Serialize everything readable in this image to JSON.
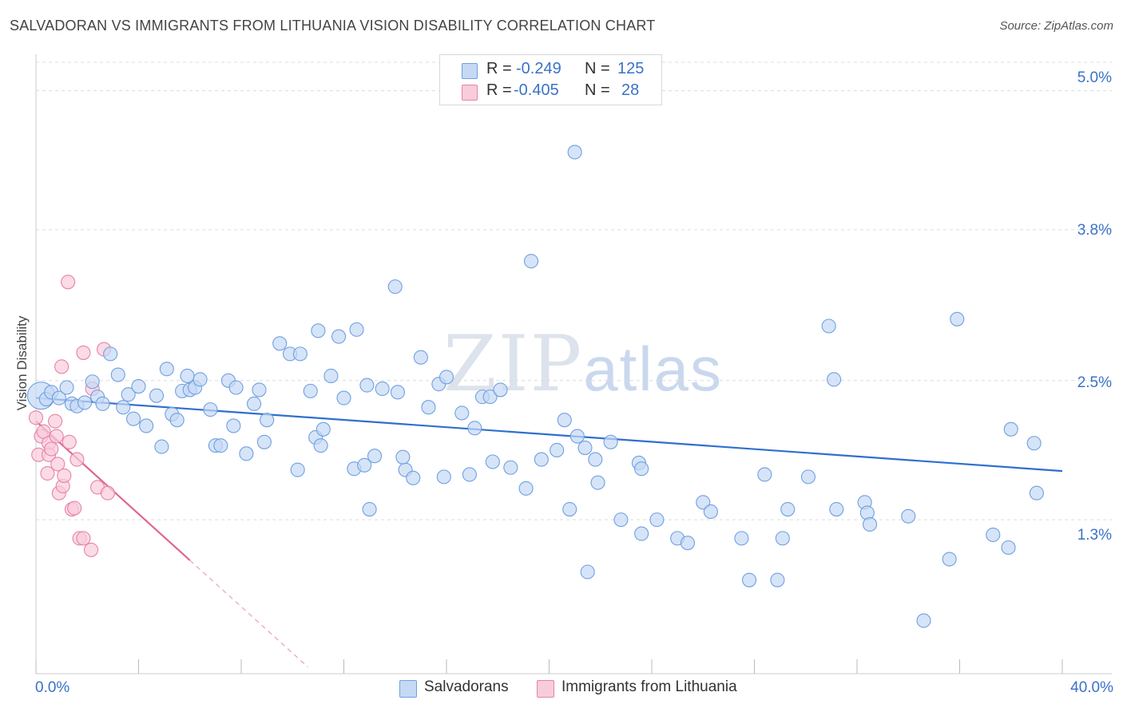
{
  "title": "SALVADORAN VS IMMIGRANTS FROM LITHUANIA VISION DISABILITY CORRELATION CHART",
  "source": "Source: ZipAtlas.com",
  "watermark": {
    "zip": "ZIP",
    "atlas": "atlas"
  },
  "legend": {
    "rows": [
      {
        "r_label": "R =",
        "r_value": "-0.249",
        "n_label": "N =",
        "n_value": "125",
        "color": "#a9c8f0"
      },
      {
        "r_label": "R =",
        "r_value": "-0.405",
        "n_label": "N =",
        "n_value": "28",
        "color": "#f6b8cc"
      }
    ]
  },
  "chart_data": {
    "type": "scatter",
    "title": "SALVADORAN VS IMMIGRANTS FROM LITHUANIA VISION DISABILITY CORRELATION CHART",
    "xlabel": "",
    "ylabel": "Vision Disability",
    "xlim": [
      0,
      40
    ],
    "ylim": [
      0,
      5.3
    ],
    "x_tick_labels": [
      "0.0%",
      "40.0%"
    ],
    "y_ticks": [
      1.3,
      2.5,
      3.8,
      5.0
    ],
    "y_tick_labels": [
      "1.3%",
      "2.5%",
      "3.8%",
      "5.0%"
    ],
    "grid": true,
    "series": [
      {
        "name": "Salvadorans",
        "color": "#6fa0e0",
        "fill": "#c5d9f5",
        "trend": {
          "x": [
            0,
            40
          ],
          "y": [
            2.35,
            1.72
          ]
        },
        "points": [
          [
            0.2,
            2.37
          ],
          [
            0.4,
            2.34
          ],
          [
            0.6,
            2.4
          ],
          [
            0.9,
            2.35
          ],
          [
            1.2,
            2.44
          ],
          [
            1.4,
            2.3
          ],
          [
            1.6,
            2.28
          ],
          [
            1.9,
            2.31
          ],
          [
            2.2,
            2.49
          ],
          [
            2.4,
            2.36
          ],
          [
            2.6,
            2.3
          ],
          [
            2.9,
            2.73
          ],
          [
            3.2,
            2.55
          ],
          [
            3.4,
            2.27
          ],
          [
            3.6,
            2.38
          ],
          [
            3.8,
            2.17
          ],
          [
            4.0,
            2.45
          ],
          [
            4.3,
            2.11
          ],
          [
            4.7,
            2.37
          ],
          [
            4.9,
            1.93
          ],
          [
            5.1,
            2.6
          ],
          [
            5.3,
            2.21
          ],
          [
            5.5,
            2.16
          ],
          [
            5.7,
            2.41
          ],
          [
            5.9,
            2.54
          ],
          [
            6.0,
            2.42
          ],
          [
            6.2,
            2.44
          ],
          [
            6.4,
            2.51
          ],
          [
            6.8,
            2.25
          ],
          [
            7.0,
            1.94
          ],
          [
            7.2,
            1.94
          ],
          [
            7.5,
            2.5
          ],
          [
            7.7,
            2.11
          ],
          [
            7.8,
            2.44
          ],
          [
            8.2,
            1.87
          ],
          [
            8.5,
            2.3
          ],
          [
            8.7,
            2.42
          ],
          [
            8.9,
            1.97
          ],
          [
            9.0,
            2.16
          ],
          [
            9.5,
            2.82
          ],
          [
            9.9,
            2.73
          ],
          [
            10.3,
            2.73
          ],
          [
            10.7,
            2.41
          ],
          [
            10.2,
            1.73
          ],
          [
            11.0,
            2.93
          ],
          [
            10.9,
            2.01
          ],
          [
            11.2,
            2.08
          ],
          [
            11.1,
            1.94
          ],
          [
            11.5,
            2.54
          ],
          [
            11.8,
            2.88
          ],
          [
            12.0,
            2.35
          ],
          [
            12.4,
            1.74
          ],
          [
            12.5,
            2.94
          ],
          [
            12.9,
            2.46
          ],
          [
            13.0,
            1.39
          ],
          [
            13.2,
            1.85
          ],
          [
            13.5,
            2.43
          ],
          [
            12.8,
            1.77
          ],
          [
            14.1,
            2.4
          ],
          [
            14.4,
            1.73
          ],
          [
            14.0,
            3.31
          ],
          [
            14.3,
            1.84
          ],
          [
            14.7,
            1.66
          ],
          [
            15.0,
            2.7
          ],
          [
            15.3,
            2.27
          ],
          [
            15.7,
            2.47
          ],
          [
            15.9,
            1.67
          ],
          [
            16.0,
            2.53
          ],
          [
            16.6,
            2.22
          ],
          [
            16.9,
            1.69
          ],
          [
            17.1,
            2.09
          ],
          [
            17.4,
            2.36
          ],
          [
            17.7,
            2.36
          ],
          [
            17.8,
            1.8
          ],
          [
            18.1,
            2.42
          ],
          [
            18.5,
            1.75
          ],
          [
            19.1,
            1.57
          ],
          [
            19.3,
            3.53
          ],
          [
            19.7,
            1.82
          ],
          [
            20.3,
            1.9
          ],
          [
            20.6,
            2.16
          ],
          [
            20.8,
            1.39
          ],
          [
            21.0,
            4.47
          ],
          [
            21.4,
            1.92
          ],
          [
            21.5,
            0.85
          ],
          [
            21.1,
            2.02
          ],
          [
            21.8,
            1.82
          ],
          [
            21.9,
            1.62
          ],
          [
            22.4,
            1.97
          ],
          [
            22.8,
            1.3
          ],
          [
            23.5,
            1.79
          ],
          [
            23.6,
            1.18
          ],
          [
            23.6,
            1.74
          ],
          [
            24.2,
            1.3
          ],
          [
            25.0,
            1.14
          ],
          [
            25.4,
            1.1
          ],
          [
            26.0,
            1.45
          ],
          [
            26.3,
            1.37
          ],
          [
            27.5,
            1.14
          ],
          [
            27.8,
            0.78
          ],
          [
            28.4,
            1.69
          ],
          [
            28.9,
            0.78
          ],
          [
            29.1,
            1.14
          ],
          [
            29.3,
            1.39
          ],
          [
            30.1,
            1.67
          ],
          [
            30.9,
            2.97
          ],
          [
            31.1,
            2.51
          ],
          [
            31.2,
            1.39
          ],
          [
            32.3,
            1.45
          ],
          [
            32.4,
            1.36
          ],
          [
            32.5,
            1.26
          ],
          [
            34.0,
            1.33
          ],
          [
            34.6,
            0.43
          ],
          [
            35.9,
            3.03
          ],
          [
            35.6,
            0.96
          ],
          [
            37.3,
            1.17
          ],
          [
            37.9,
            1.06
          ],
          [
            38.0,
            2.08
          ],
          [
            38.9,
            1.96
          ],
          [
            39.0,
            1.53
          ]
        ]
      },
      {
        "name": "Immigrants from Lithuania",
        "color": "#e882a8",
        "fill": "#f8ccdb",
        "trend": {
          "x": [
            0,
            6.0
          ],
          "y": [
            2.15,
            0.95
          ]
        },
        "trend_dashed": {
          "x": [
            6.0,
            10.6
          ],
          "y": [
            0.95,
            0.03
          ]
        },
        "points": [
          [
            0,
            2.18
          ],
          [
            0.1,
            1.86
          ],
          [
            0.2,
            2.02
          ],
          [
            0.3,
            2.06
          ],
          [
            0.45,
            1.7
          ],
          [
            0.5,
            1.96
          ],
          [
            0.5,
            1.86
          ],
          [
            0.6,
            1.91
          ],
          [
            0.75,
            2.15
          ],
          [
            0.8,
            2.02
          ],
          [
            0.85,
            1.78
          ],
          [
            0.9,
            1.53
          ],
          [
            1.0,
            2.62
          ],
          [
            1.05,
            1.59
          ],
          [
            1.1,
            1.68
          ],
          [
            1.25,
            3.35
          ],
          [
            1.3,
            1.97
          ],
          [
            1.4,
            1.39
          ],
          [
            1.5,
            1.4
          ],
          [
            1.6,
            1.82
          ],
          [
            1.7,
            1.14
          ],
          [
            1.85,
            2.74
          ],
          [
            1.85,
            1.14
          ],
          [
            2.15,
            1.04
          ],
          [
            2.2,
            2.43
          ],
          [
            2.4,
            1.58
          ],
          [
            2.65,
            2.77
          ],
          [
            2.8,
            1.53
          ]
        ]
      }
    ]
  },
  "bottom_legend": {
    "items": [
      {
        "label": "Salvadorans",
        "color": "#a9c8f0"
      },
      {
        "label": "Immigrants from Lithuania",
        "color": "#f6b8cc"
      }
    ]
  }
}
